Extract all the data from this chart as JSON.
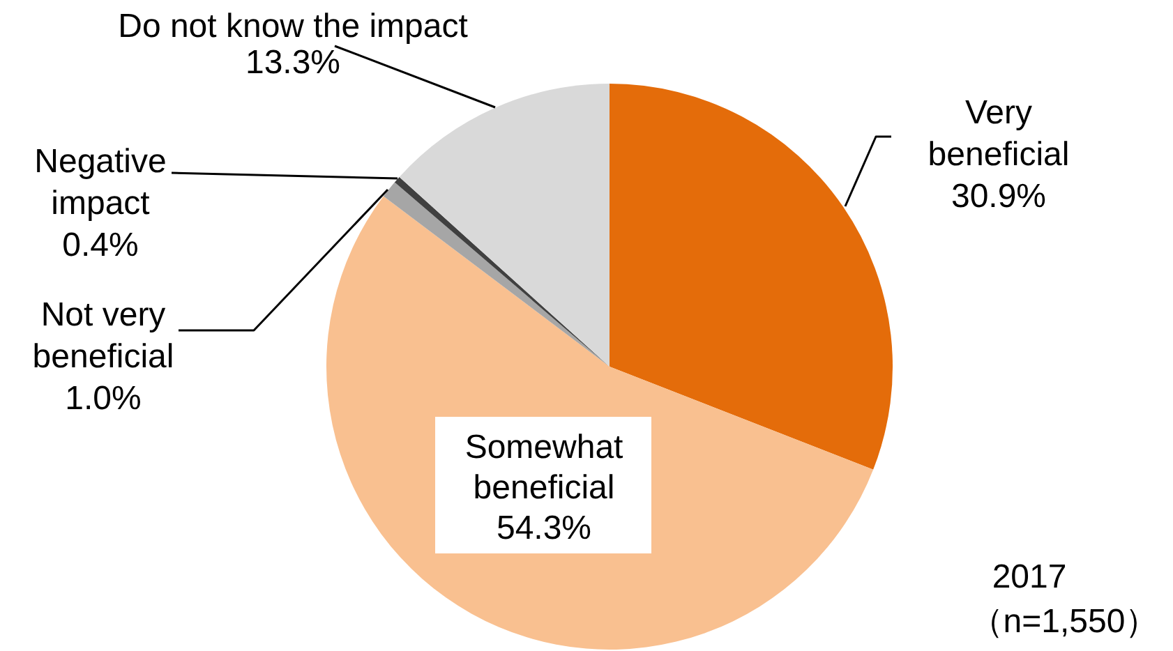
{
  "chart_data": {
    "type": "pie",
    "categories": [
      "Very beneficial",
      "Somewhat beneficial",
      "Not very beneficial",
      "Negative impact",
      "Do not know the impact"
    ],
    "values": [
      30.9,
      54.3,
      1.0,
      0.4,
      13.3
    ],
    "value_labels": [
      "30.9%",
      "54.3%",
      "1.0%",
      "0.4%",
      "13.3%"
    ],
    "colors": [
      "#e46c0a",
      "#f9c090",
      "#a6a6a6",
      "#404040",
      "#d9d9d9"
    ],
    "annotations": [
      "2017",
      "（n=1,550）"
    ]
  }
}
